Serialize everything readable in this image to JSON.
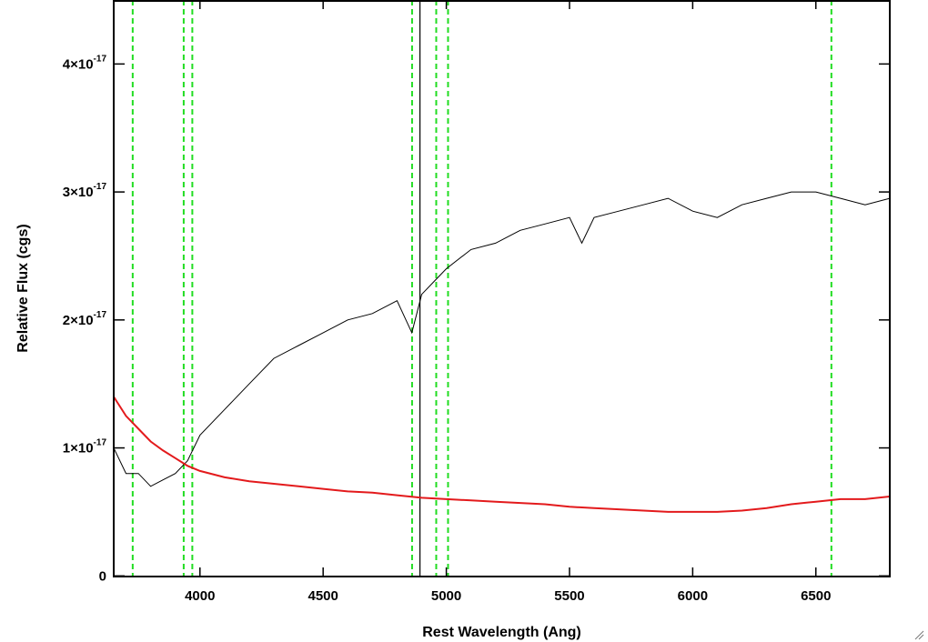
{
  "chart_data": {
    "type": "line",
    "title": "",
    "xlabel": "Rest Wavelength (Ang)",
    "ylabel": "Relative Flux (cgs)",
    "xlim": [
      3650,
      6800
    ],
    "ylim": [
      -5e-20,
      4.5e-17
    ],
    "x_ticks": [
      4000,
      4500,
      5000,
      5500,
      6000,
      6500
    ],
    "x_tick_labels": [
      "4000",
      "4500",
      "5000",
      "5500",
      "6000",
      "6500"
    ],
    "y_ticks": [
      0,
      1e-17,
      2e-17,
      3e-17,
      4e-17
    ],
    "y_tick_labels": [
      {
        "mantissa": "0",
        "exp": ""
      },
      {
        "mantissa": "1×10",
        "exp": "-17"
      },
      {
        "mantissa": "2×10",
        "exp": "-17"
      },
      {
        "mantissa": "3×10",
        "exp": "-17"
      },
      {
        "mantissa": "4×10",
        "exp": "-17"
      }
    ],
    "grid": false,
    "series": [
      {
        "color": "#000000",
        "x": [
          3650,
          3700,
          3750,
          3800,
          3850,
          3900,
          3950,
          4000,
          4100,
          4200,
          4300,
          4400,
          4500,
          4600,
          4700,
          4800,
          4860,
          4900,
          4950,
          5000,
          5100,
          5200,
          5300,
          5400,
          5500,
          5550,
          5600,
          5700,
          5800,
          5900,
          6000,
          6100,
          6200,
          6300,
          6400,
          6500,
          6600,
          6700,
          6800
        ],
        "y": [
          1e-17,
          8e-18,
          8e-18,
          7e-18,
          7.5e-18,
          8e-18,
          9e-18,
          1.1e-17,
          1.3e-17,
          1.5e-17,
          1.7e-17,
          1.8e-17,
          1.9e-17,
          2e-17,
          2.05e-17,
          2.15e-17,
          1.9e-17,
          2.2e-17,
          2.3e-17,
          2.4e-17,
          2.55e-17,
          2.6e-17,
          2.7e-17,
          2.75e-17,
          2.8e-17,
          2.6e-17,
          2.8e-17,
          2.85e-17,
          2.9e-17,
          2.95e-17,
          2.85e-17,
          2.8e-17,
          2.9e-17,
          2.95e-17,
          3e-17,
          3e-17,
          2.95e-17,
          2.9e-17,
          2.95e-17
        ]
      },
      {
        "color": "#e31a1c",
        "x": [
          3650,
          3700,
          3750,
          3800,
          3850,
          3900,
          3950,
          4000,
          4100,
          4200,
          4300,
          4400,
          4500,
          4600,
          4700,
          4800,
          4900,
          5000,
          5100,
          5200,
          5300,
          5400,
          5500,
          5600,
          5700,
          5800,
          5900,
          6000,
          6100,
          6200,
          6300,
          6400,
          6500,
          6600,
          6700,
          6800
        ],
        "y": [
          1.4e-17,
          1.25e-17,
          1.15e-17,
          1.05e-17,
          9.8e-18,
          9.2e-18,
          8.6e-18,
          8.2e-18,
          7.7e-18,
          7.4e-18,
          7.2e-18,
          7e-18,
          6.8e-18,
          6.6e-18,
          6.5e-18,
          6.3e-18,
          6.1e-18,
          6e-18,
          5.9e-18,
          5.8e-18,
          5.7e-18,
          5.6e-18,
          5.4e-18,
          5.3e-18,
          5.2e-18,
          5.1e-18,
          5e-18,
          5e-18,
          5e-18,
          5.1e-18,
          5.3e-18,
          5.6e-18,
          5.8e-18,
          6e-18,
          6e-18,
          6.2e-18
        ]
      }
    ],
    "vertical_lines": [
      {
        "x": 3727,
        "color": "#22dd22",
        "style": "dashed"
      },
      {
        "x": 3934,
        "color": "#22dd22",
        "style": "dashed"
      },
      {
        "x": 3969,
        "color": "#22dd22",
        "style": "dashed"
      },
      {
        "x": 4861,
        "color": "#22dd22",
        "style": "dashed"
      },
      {
        "x": 4959,
        "color": "#22dd22",
        "style": "dashed"
      },
      {
        "x": 5007,
        "color": "#22dd22",
        "style": "dashed"
      },
      {
        "x": 6563,
        "color": "#22dd22",
        "style": "dashed"
      },
      {
        "x": 4893,
        "color": "#000000",
        "style": "solid"
      }
    ]
  }
}
